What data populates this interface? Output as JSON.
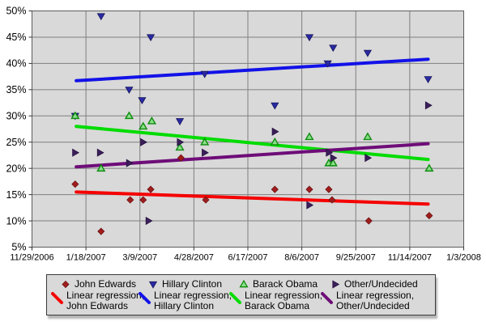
{
  "colors": {
    "page_bg": "#ffffff",
    "plot_bg": "#d9d9d9",
    "grid_line": "#7f7f7f",
    "plot_border": "#5c5c5c",
    "tick_mark": "#333333",
    "axis_text": "#000000",
    "legend_bg": "#d9d9d9",
    "legend_border": "#3a3a3a"
  },
  "chart_data": {
    "type": "scatter",
    "title": "",
    "xlabel": "",
    "ylabel": "",
    "grid": true,
    "legend_position": "bottom",
    "x_axis": {
      "unit": "date",
      "range_days": [
        0,
        400
      ],
      "tick_positions_days": [
        0,
        50,
        100,
        150,
        200,
        250,
        300,
        350,
        400
      ],
      "tick_labels": [
        "11/29/2006",
        "1/18/2007",
        "3/9/2007",
        "4/28/2007",
        "6/17/2007",
        "8/6/2007",
        "9/25/2007",
        "11/14/2007",
        "1/3/2008"
      ]
    },
    "y_axis": {
      "unit": "percent",
      "min": 5,
      "max": 50,
      "step": 5,
      "tick_labels": [
        "5%",
        "10%",
        "15%",
        "20%",
        "25%",
        "30%",
        "35%",
        "40%",
        "45%",
        "50%"
      ]
    },
    "series": [
      {
        "name": "John Edwards",
        "marker": "diamond",
        "marker_color": "#a11d1d",
        "marker_edge": "#6b1111",
        "points_day_pct": [
          [
            40,
            17
          ],
          [
            64,
            8
          ],
          [
            91,
            14
          ],
          [
            103,
            14
          ],
          [
            110,
            16
          ],
          [
            138,
            22
          ],
          [
            161,
            14
          ],
          [
            225,
            16
          ],
          [
            257,
            16
          ],
          [
            275,
            16
          ],
          [
            278,
            14
          ],
          [
            312,
            10
          ],
          [
            368,
            11
          ]
        ]
      },
      {
        "name": "Hillary Clinton",
        "marker": "triangle-down",
        "marker_color": "#2a2aa5",
        "marker_edge": "#14145a",
        "points_day_pct": [
          [
            40,
            30
          ],
          [
            64,
            49
          ],
          [
            90,
            35
          ],
          [
            102,
            33
          ],
          [
            110,
            45
          ],
          [
            137,
            29
          ],
          [
            160,
            38
          ],
          [
            225,
            32
          ],
          [
            257,
            45
          ],
          [
            274,
            40
          ],
          [
            279,
            43
          ],
          [
            311,
            42
          ],
          [
            367,
            37
          ]
        ]
      },
      {
        "name": "Barack Obama",
        "marker": "triangle-up",
        "marker_color": "#8ade8a",
        "marker_edge": "#0e8c0e",
        "points_day_pct": [
          [
            40,
            30
          ],
          [
            64,
            20
          ],
          [
            90,
            30
          ],
          [
            103,
            28
          ],
          [
            111,
            29
          ],
          [
            137,
            24
          ],
          [
            160,
            25
          ],
          [
            225,
            25
          ],
          [
            257,
            26
          ],
          [
            275,
            21
          ],
          [
            279,
            21
          ],
          [
            311,
            26
          ],
          [
            368,
            20
          ]
        ]
      },
      {
        "name": "Other/Undecided",
        "marker": "triangle-right",
        "marker_color": "#3c1e5a",
        "marker_edge": "#241040",
        "points_day_pct": [
          [
            40,
            23
          ],
          [
            63,
            23
          ],
          [
            90,
            21
          ],
          [
            103,
            25
          ],
          [
            108,
            10
          ],
          [
            137,
            25
          ],
          [
            160,
            23
          ],
          [
            225,
            27
          ],
          [
            257,
            13
          ],
          [
            275,
            23
          ],
          [
            279,
            22
          ],
          [
            311,
            22
          ],
          [
            367,
            32
          ]
        ]
      }
    ],
    "regressions": [
      {
        "name": "Linear regression, John Edwards",
        "color": "#f50000",
        "start_day_pct": [
          41,
          15.5
        ],
        "end_day_pct": [
          367,
          13.2
        ]
      },
      {
        "name": "Linear regression, Hillary Clinton",
        "color": "#1212e8",
        "start_day_pct": [
          41,
          36.7
        ],
        "end_day_pct": [
          367,
          40.8
        ]
      },
      {
        "name": "Linear regression, Barack Obama",
        "color": "#00dc00",
        "start_day_pct": [
          41,
          28.0
        ],
        "end_day_pct": [
          367,
          21.7
        ]
      },
      {
        "name": "Linear regression, Other/Undecided",
        "color": "#6e0d78",
        "start_day_pct": [
          41,
          20.3
        ],
        "end_day_pct": [
          367,
          24.7
        ]
      }
    ]
  },
  "legend": {
    "items": [
      {
        "label": "John Edwards",
        "regression_label_line1": "Linear regression,",
        "regression_label_line2": "John Edwards"
      },
      {
        "label": "Hillary Clinton",
        "regression_label_line1": "Linear regression,",
        "regression_label_line2": "Hillary Clinton"
      },
      {
        "label": "Barack Obama",
        "regression_label_line1": "Linear regression,",
        "regression_label_line2": "Barack Obama"
      },
      {
        "label": "Other/Undecided",
        "regression_label_line1": "Linear regression,",
        "regression_label_line2": "Other/Undecided"
      }
    ]
  }
}
